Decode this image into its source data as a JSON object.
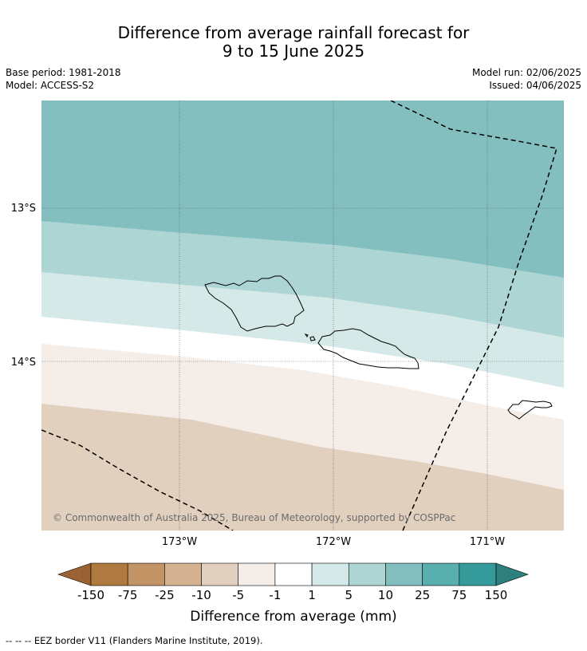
{
  "title_line1": "Difference from average rainfall forecast for",
  "title_line2": "9 to 15 June 2025",
  "meta": {
    "base_period": "Base period: 1981-2018",
    "model": "Model: ACCESS-S2",
    "model_run": "Model run: 02/06/2025",
    "issued": "Issued: 04/06/2025"
  },
  "map": {
    "lat_labels": [
      "13°S",
      "14°S"
    ],
    "lon_labels": [
      "173°W",
      "172°W",
      "171°W"
    ],
    "copyright": "© Commonwealth of Australia 2025, Bureau of Meteorology, supported by COSPPac",
    "islands": [
      "Savai'i",
      "Upolu",
      "Tutuila"
    ],
    "border": "EEZ border (dashed)"
  },
  "colorbar": {
    "ticks": [
      "-150",
      "-75",
      "-25",
      "-10",
      "-5",
      "-1",
      "1",
      "5",
      "10",
      "25",
      "75",
      "150"
    ],
    "colors": [
      "#9a6232",
      "#b0793f",
      "#c39466",
      "#d4b292",
      "#e2d0bf",
      "#f4ede8",
      "#ffffff",
      "#d5eae8",
      "#acd5d4",
      "#84bfbf",
      "#59aeae",
      "#359a9a",
      "#2f7f7f"
    ],
    "label": "Difference from average (mm)"
  },
  "footnote": "--  --  -- EEZ border V11 (Flanders Marine Institute, 2019)."
}
